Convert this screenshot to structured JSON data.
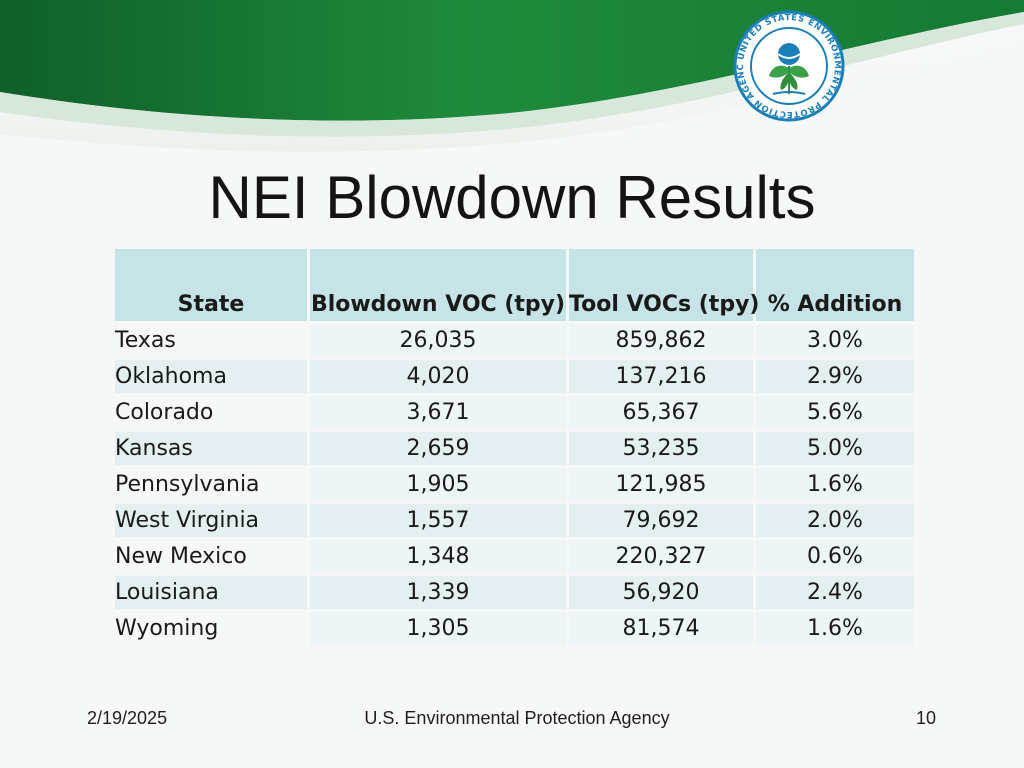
{
  "header": {
    "logo_text": "UNITED STATES ENVIRONMENTAL PROTECTION AGENCY",
    "brand_color": "#1e8a3a",
    "logo_ring_color": "#1a7fb8"
  },
  "title": "NEI Blowdown Results",
  "table": {
    "columns": [
      "State",
      "Blowdown VOC (tpy)",
      "Tool VOCs (tpy)",
      "% Addition"
    ],
    "rows": [
      {
        "state": "Texas",
        "blowdown": "26,035",
        "tool": "859,862",
        "addition": "3.0%"
      },
      {
        "state": "Oklahoma",
        "blowdown": "4,020",
        "tool": "137,216",
        "addition": "2.9%"
      },
      {
        "state": "Colorado",
        "blowdown": "3,671",
        "tool": "65,367",
        "addition": "5.6%"
      },
      {
        "state": "Kansas",
        "blowdown": "2,659",
        "tool": "53,235",
        "addition": "5.0%"
      },
      {
        "state": "Pennsylvania",
        "blowdown": "1,905",
        "tool": "121,985",
        "addition": "1.6%"
      },
      {
        "state": "West Virginia",
        "blowdown": "1,557",
        "tool": "79,692",
        "addition": "2.0%"
      },
      {
        "state": "New Mexico",
        "blowdown": "1,348",
        "tool": "220,327",
        "addition": "0.6%"
      },
      {
        "state": "Louisiana",
        "blowdown": "1,339",
        "tool": "56,920",
        "addition": "2.4%"
      },
      {
        "state": "Wyoming",
        "blowdown": "1,305",
        "tool": "81,574",
        "addition": "1.6%"
      }
    ]
  },
  "footer": {
    "date": "2/19/2025",
    "agency": "U.S. Environmental Protection Agency",
    "page": "10"
  }
}
